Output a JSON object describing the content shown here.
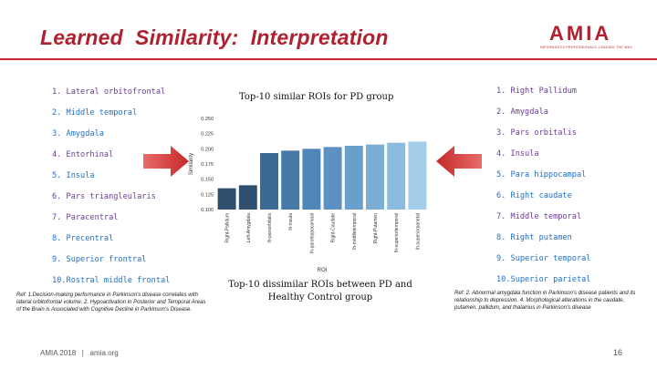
{
  "slide": {
    "title": "Learned  Similarity:  Interpretation",
    "logo_text": "AMIA",
    "logo_tagline": "INFORMATICS PROFESSIONALS. LEADING THE WAY.",
    "footer": "AMIA 2018   |   amia.org",
    "page_number": "16",
    "accent_color": "#b0202e"
  },
  "left_list": [
    {
      "text": "1. Lateral orbitofrontal",
      "color": "purple"
    },
    {
      "text": "2. Middle temporal",
      "color": "blue"
    },
    {
      "text": "3. Amygdala",
      "color": "blue"
    },
    {
      "text": "4. Entorhinal",
      "color": "purple"
    },
    {
      "text": "5. Insula",
      "color": "blue"
    },
    {
      "text": "6. Pars triangleularis",
      "color": "purple"
    },
    {
      "text": "7. Paracentral",
      "color": "purple"
    },
    {
      "text": "8. Precentral",
      "color": "blue"
    },
    {
      "text": "9. Superior frontral",
      "color": "blue"
    },
    {
      "text": "10.Rostral middle frontal",
      "color": "blue"
    }
  ],
  "right_list": [
    {
      "text": "1. Right Pallidum",
      "color": "purple"
    },
    {
      "text": "2. Amygdala",
      "color": "purple"
    },
    {
      "text": "3. Pars orbitalis",
      "color": "purple"
    },
    {
      "text": "4. Insula",
      "color": "purple"
    },
    {
      "text": "5. Para hippocampal",
      "color": "blue"
    },
    {
      "text": "6. Right caudate",
      "color": "blue"
    },
    {
      "text": "7. Middle temporal",
      "color": "purple"
    },
    {
      "text": "8. Right putamen",
      "color": "blue"
    },
    {
      "text": "9. Superior temporal",
      "color": "blue"
    },
    {
      "text": "10.Superior parietal",
      "color": "blue"
    }
  ],
  "chart_titles": {
    "top": "Top-10 similar ROIs for PD group",
    "bottom": "Top-10 dissimilar ROIs between PD and Healthy Control group"
  },
  "refs": {
    "left": "Ref: 1.Decision-making performance in Parkinson's disease correlates with lateral orbitofrontal volume. 2. Hypoactivation in Posterior and Temporal Areas of the Brain is Associated with Cognitive Decline in Parkinson's Disease.",
    "right": "Ref: 2. Abnormal amygdala function in Parkinson's disease patients and its relationship to depression. 4. Morphological alterations in the caudate, putamen, pallidum, and thalamus in Parkinson's disease"
  },
  "chart_data": {
    "type": "bar",
    "xlabel": "ROI",
    "ylabel": "Similarity",
    "ylim": [
      0.1,
      0.25
    ],
    "yticks": [
      "0.100",
      "0.125",
      "0.150",
      "0.175",
      "0.200",
      "0.225",
      "0.250"
    ],
    "categories": [
      "Right-Pallidum",
      "Left-Amygdala",
      "lh-parsorbitalis",
      "lh-insula",
      "lh-parahippocampal",
      "Right-Caudate",
      "lh-middletemporal",
      "Right-Putamen",
      "lh-superiortemporal",
      "lh-superiorparietal"
    ],
    "values": [
      0.135,
      0.14,
      0.193,
      0.197,
      0.2,
      0.203,
      0.205,
      0.207,
      0.21,
      0.212
    ],
    "colors": [
      "#2f4f6f",
      "#2f4f6f",
      "#3a6a95",
      "#4579a8",
      "#4f86b8",
      "#5b92c2",
      "#6a9fcb",
      "#7aaed6",
      "#8bbcdf",
      "#a3cde9"
    ],
    "grid": false,
    "legend": "none"
  }
}
